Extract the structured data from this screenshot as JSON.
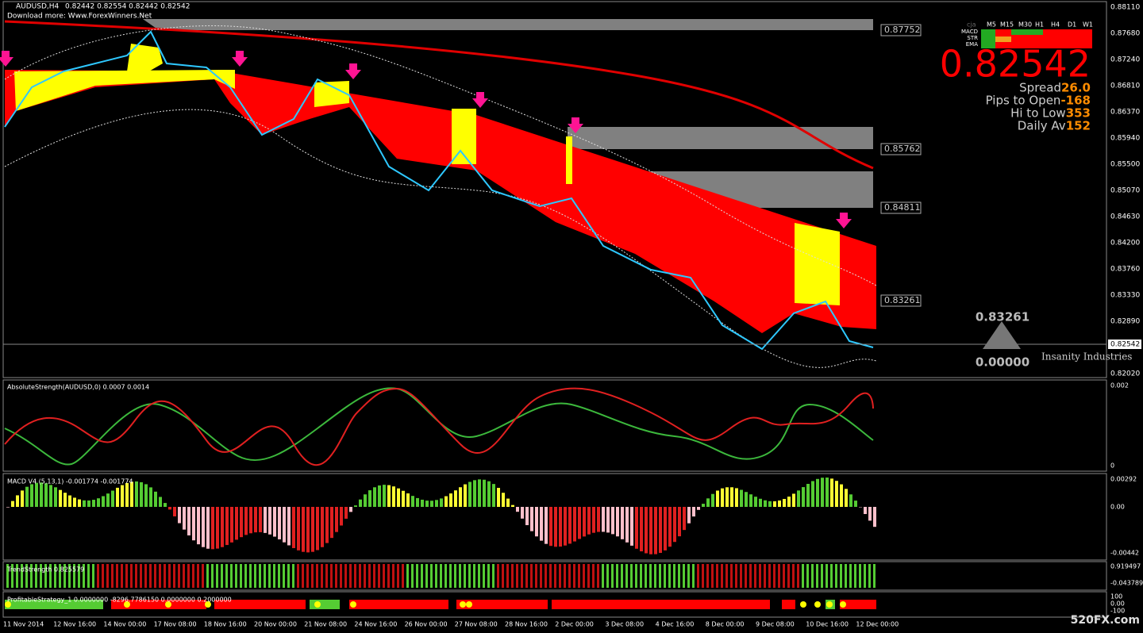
{
  "header": {
    "symbol": "AUDUSD,H4",
    "quote": "0.82442 0.82554 0.82442 0.82542",
    "download": "Download more: Www.ForexWinners.Net"
  },
  "price_axis": [
    "0.88110",
    "0.87680",
    "0.87240",
    "0.86810",
    "0.86370",
    "0.85940",
    "0.85500",
    "0.85070",
    "0.84630",
    "0.84200",
    "0.83760",
    "0.83330",
    "0.82890",
    "0.82020"
  ],
  "current_price": "0.82542",
  "levels": [
    "0.87752",
    "0.85762",
    "0.84811",
    "0.83261"
  ],
  "dashboard": {
    "timeframes": [
      "cja",
      "M5",
      "M15",
      "M30",
      "H1",
      "H4",
      "D1",
      "W1"
    ],
    "rows": [
      "MACD",
      "STR",
      "EMA"
    ],
    "price": "0.82542",
    "stats": [
      {
        "label": "Spread",
        "value": "26.0"
      },
      {
        "label": "Pips to Open",
        "value": "-168"
      },
      {
        "label": "Hi to Low",
        "value": "353"
      },
      {
        "label": "Daily Av",
        "value": "152"
      }
    ]
  },
  "logo": {
    "top": "0.83261",
    "bottom": "0.00000",
    "name": "Insanity Industries"
  },
  "indicators": [
    {
      "title": "AbsoluteStrength(AUDUSD,0) 0.0007 0.0014",
      "axis": [
        "0.002",
        "0"
      ]
    },
    {
      "title": "MACD V4 (5,13,1) -0.001774 -0.001774",
      "axis": [
        "0.00292",
        "0.00",
        "-0.00442"
      ]
    },
    {
      "title": "TrendStrength 0.825579",
      "axis": [
        "0.919497",
        "-0.043789"
      ]
    },
    {
      "title": "ProfitableStrategy_1 0.0000000 -8296.7786150 0.0000000 0.2000000",
      "axis": [
        "100",
        "0.00",
        "-100"
      ]
    }
  ],
  "time_axis": [
    "11 Nov 2014",
    "12 Nov 16:00",
    "14 Nov 00:00",
    "17 Nov 08:00",
    "18 Nov 16:00",
    "20 Nov 00:00",
    "21 Nov 08:00",
    "24 Nov 16:00",
    "26 Nov 00:00",
    "27 Nov 08:00",
    "28 Nov 16:00",
    "2 Dec 00:00",
    "3 Dec 08:00",
    "4 Dec 16:00",
    "8 Dec 00:00",
    "9 Dec 08:00",
    "10 Dec 16:00",
    "12 Dec 00:00"
  ],
  "watermark": "520FX.com"
}
